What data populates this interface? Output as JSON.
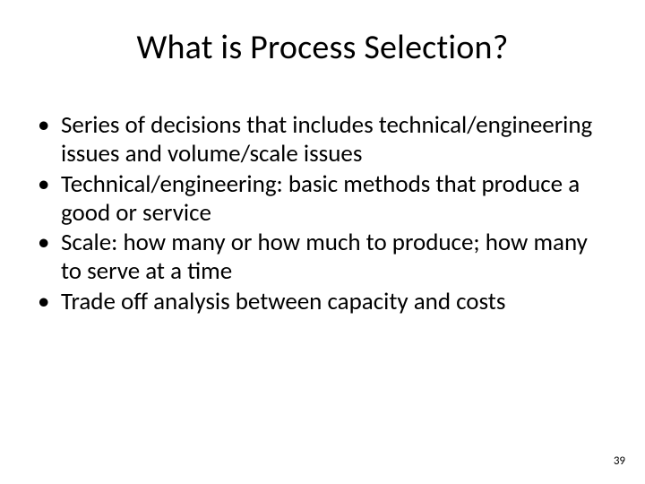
{
  "title": "What is Process Selection?",
  "bullets": [
    "Series of decisions that includes technical/engineering issues and volume/scale issues",
    "Technical/engineering: basic methods that produce a good or service",
    "Scale: how many or how much to produce; how many to serve at a time",
    "Trade off analysis between capacity and costs"
  ],
  "page_number": "39",
  "colors": {
    "background": "#ffffff",
    "text": "#000000"
  },
  "typography": {
    "title_fontsize": 38,
    "body_fontsize": 27,
    "pagenum_fontsize": 13,
    "font_family": "Calibri"
  }
}
